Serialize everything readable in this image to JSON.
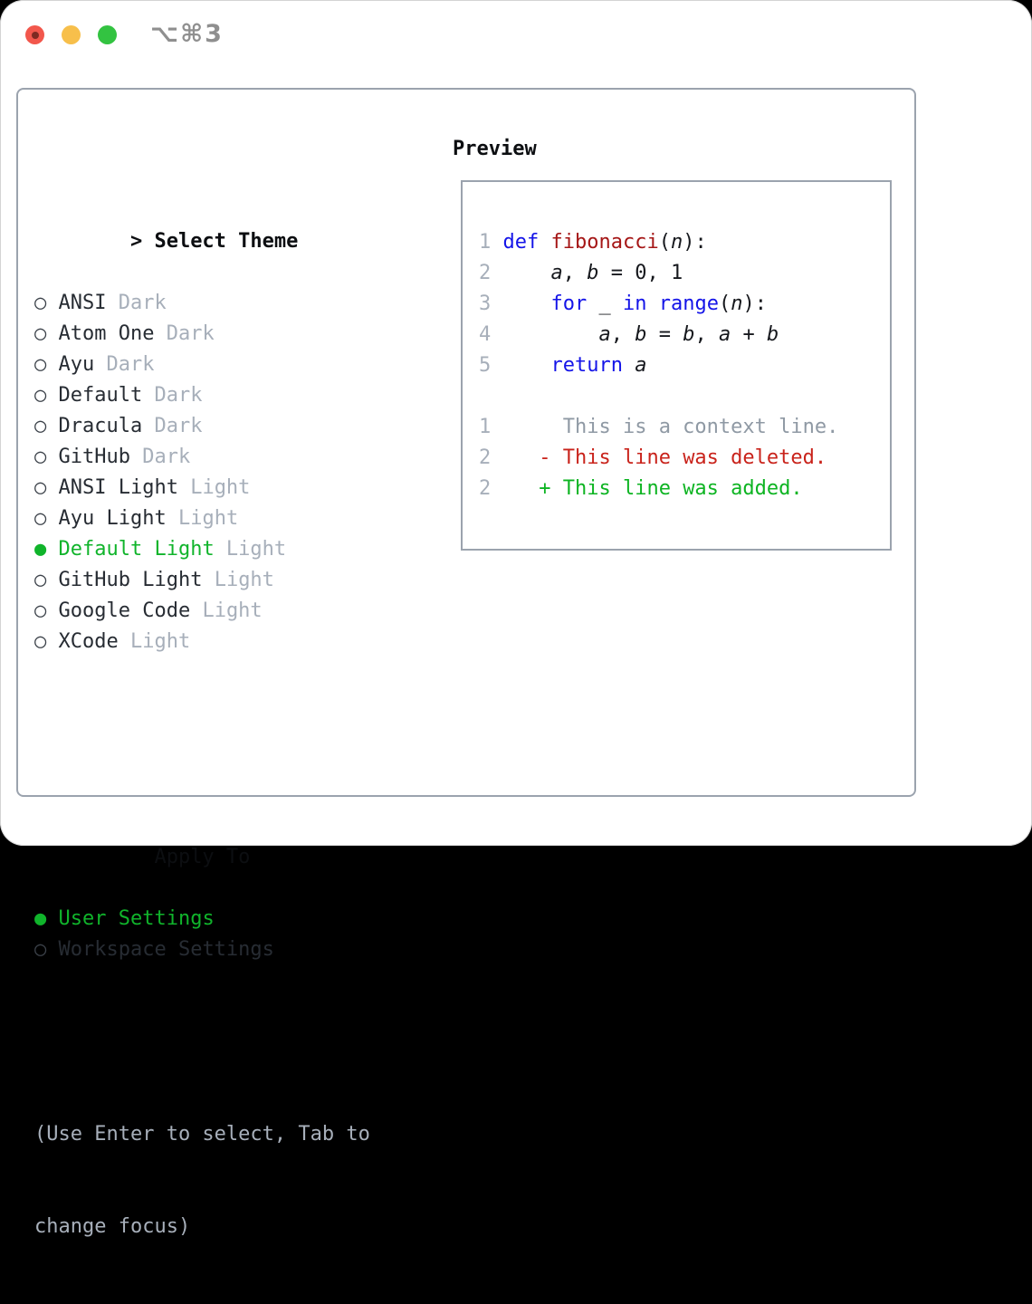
{
  "titlebar": {
    "shortcut": "⌥⌘3"
  },
  "icons": {
    "radio_selected": "●",
    "radio_unselected": "○",
    "header_chevron": ">"
  },
  "colors": {
    "accent_green": "#10b42b",
    "text_dark": "#272c33",
    "text_muted": "#a7afba",
    "radio_ring": "#3c424a",
    "header_text": "#0c0e11",
    "hint_text": "#a7afba",
    "shortcut_text": "#8f8f8f",
    "traffic_red": "#f2574c",
    "traffic_yellow": "#f7bf4b",
    "traffic_green": "#33c341",
    "panel_border": "#9ba3ae",
    "code": {
      "kw": "#1414e8",
      "fn": "#a51616",
      "pl": "#16181d",
      "var": "#16181d",
      "ctx": "#8f99a4",
      "del": "#c9231b",
      "add": "#0db422",
      "num": "#a7afba"
    }
  },
  "sidebar": {
    "header_prefix": ">",
    "header_label": "Select Theme",
    "themes": [
      {
        "name": "ANSI",
        "variant": "Dark",
        "selected": false
      },
      {
        "name": "Atom One",
        "variant": "Dark",
        "selected": false
      },
      {
        "name": "Ayu",
        "variant": "Dark",
        "selected": false
      },
      {
        "name": "Default",
        "variant": "Dark",
        "selected": false
      },
      {
        "name": "Dracula",
        "variant": "Dark",
        "selected": false
      },
      {
        "name": "GitHub",
        "variant": "Dark",
        "selected": false
      },
      {
        "name": "ANSI Light",
        "variant": "Light",
        "selected": false
      },
      {
        "name": "Ayu Light",
        "variant": "Light",
        "selected": false
      },
      {
        "name": "Default Light",
        "variant": "Light",
        "selected": true
      },
      {
        "name": "GitHub Light",
        "variant": "Light",
        "selected": false
      },
      {
        "name": "Google Code",
        "variant": "Light",
        "selected": false
      },
      {
        "name": "XCode",
        "variant": "Light",
        "selected": false
      }
    ],
    "apply_header": "Apply To",
    "apply_options": [
      {
        "name": "User Settings",
        "selected": true
      },
      {
        "name": "Workspace Settings",
        "selected": false
      }
    ],
    "hint_line1": "(Use Enter to select, Tab to",
    "hint_line2": "change focus)"
  },
  "preview": {
    "title": "Preview",
    "lines": [
      {
        "kind": "code",
        "num": "1",
        "segs": [
          {
            "t": "def",
            "c": "kw"
          },
          {
            "t": " ",
            "c": "pl"
          },
          {
            "t": "fibonacci",
            "c": "fn"
          },
          {
            "t": "(",
            "c": "pl"
          },
          {
            "t": "n",
            "c": "var"
          },
          {
            "t": "):",
            "c": "pl"
          }
        ]
      },
      {
        "kind": "code",
        "num": "2",
        "segs": [
          {
            "t": "    ",
            "c": "pl"
          },
          {
            "t": "a",
            "c": "var"
          },
          {
            "t": ", ",
            "c": "pl"
          },
          {
            "t": "b",
            "c": "var"
          },
          {
            "t": " = 0, 1",
            "c": "pl"
          }
        ]
      },
      {
        "kind": "code",
        "num": "3",
        "segs": [
          {
            "t": "    ",
            "c": "pl"
          },
          {
            "t": "for",
            "c": "kw"
          },
          {
            "t": " _ ",
            "c": "pl"
          },
          {
            "t": "in",
            "c": "kw"
          },
          {
            "t": " ",
            "c": "pl"
          },
          {
            "t": "range",
            "c": "kw"
          },
          {
            "t": "(",
            "c": "pl"
          },
          {
            "t": "n",
            "c": "var"
          },
          {
            "t": "):",
            "c": "pl"
          }
        ]
      },
      {
        "kind": "code",
        "num": "4",
        "segs": [
          {
            "t": "        ",
            "c": "pl"
          },
          {
            "t": "a",
            "c": "var"
          },
          {
            "t": ", ",
            "c": "pl"
          },
          {
            "t": "b",
            "c": "var"
          },
          {
            "t": " = ",
            "c": "pl"
          },
          {
            "t": "b",
            "c": "var"
          },
          {
            "t": ", ",
            "c": "pl"
          },
          {
            "t": "a",
            "c": "var"
          },
          {
            "t": " + ",
            "c": "pl"
          },
          {
            "t": "b",
            "c": "var"
          }
        ]
      },
      {
        "kind": "code",
        "num": "5",
        "segs": [
          {
            "t": "    ",
            "c": "pl"
          },
          {
            "t": "return",
            "c": "kw"
          },
          {
            "t": " ",
            "c": "pl"
          },
          {
            "t": "a",
            "c": "var"
          }
        ]
      },
      {
        "kind": "blank",
        "num": "",
        "segs": []
      },
      {
        "kind": "context",
        "num": "1",
        "segs": [
          {
            "t": "     ",
            "c": "pl"
          },
          {
            "t": "This is a context line.",
            "c": "ctx"
          }
        ]
      },
      {
        "kind": "deleted",
        "num": "2",
        "segs": [
          {
            "t": "   ",
            "c": "pl"
          },
          {
            "t": "- This line was deleted.",
            "c": "del"
          }
        ]
      },
      {
        "kind": "added",
        "num": "2",
        "segs": [
          {
            "t": "   ",
            "c": "pl"
          },
          {
            "t": "+ This line was added.",
            "c": "add"
          }
        ]
      }
    ]
  }
}
